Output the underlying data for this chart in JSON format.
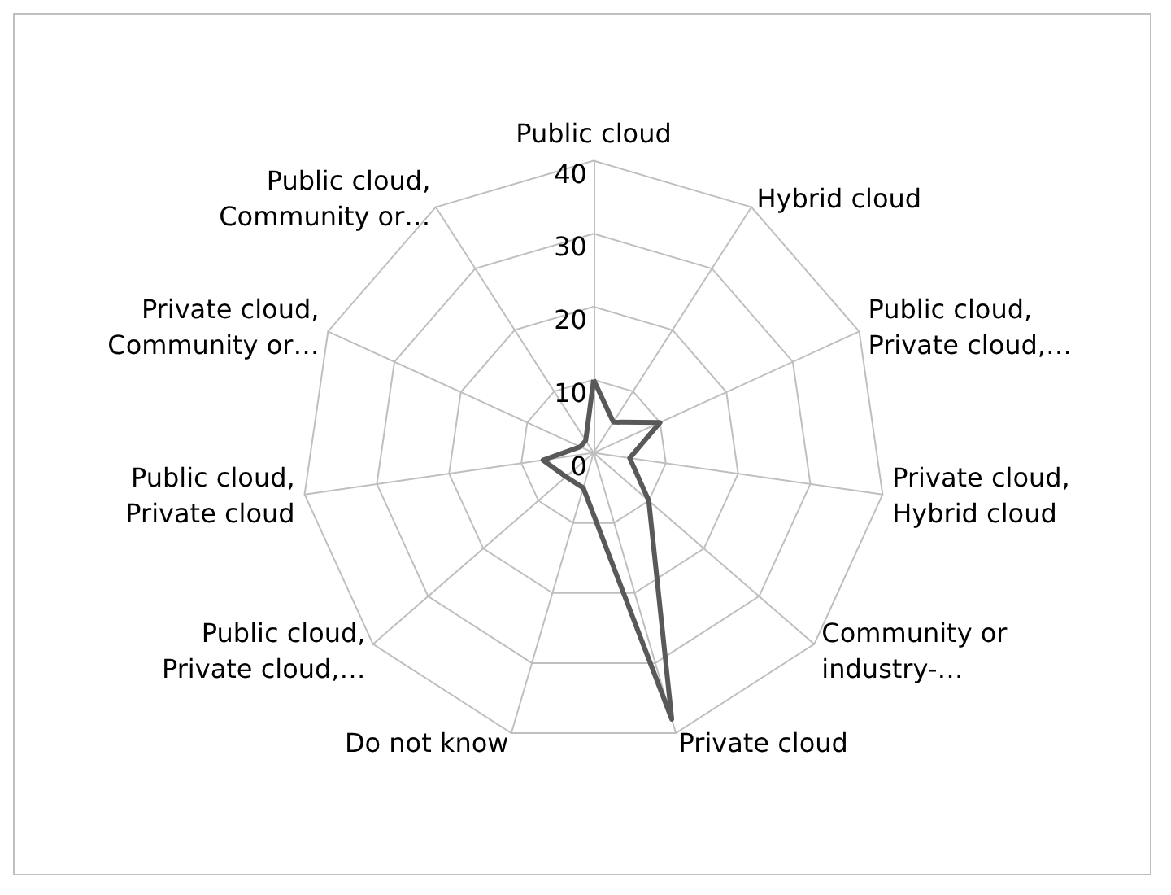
{
  "chart_data": {
    "type": "radar",
    "categories": [
      "Public cloud",
      "Hybrid cloud",
      "Public cloud,\nPrivate cloud,…",
      "Private cloud,\nHybrid cloud",
      "Community or\nindustry-…",
      "Private cloud",
      "Do not know",
      "Public cloud,\nPrivate cloud,…",
      "Public cloud,\nPrivate cloud",
      "Private cloud,\nCommunity or…",
      "Public cloud,\nCommunity or…"
    ],
    "series": [
      {
        "color": "#595959",
        "values": [
          10,
          5,
          10,
          5,
          10,
          38,
          5,
          5,
          7,
          2,
          2
        ]
      }
    ],
    "ylim": [
      0,
      40
    ],
    "yticks": [
      0,
      10,
      20,
      30,
      40
    ],
    "grid": true,
    "marker": "none",
    "line_style": "solid"
  }
}
